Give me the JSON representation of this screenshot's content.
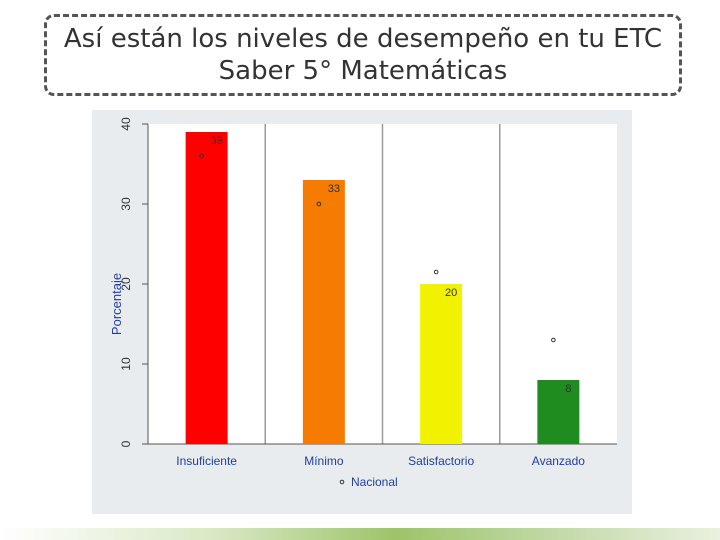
{
  "slide": {
    "title_line1": "Así están los niveles de desempeño en tu ETC",
    "title_line2": "Saber 5° Matemáticas"
  },
  "chart_data": {
    "type": "bar",
    "title": "",
    "xlabel": "",
    "ylabel": "Porcentaje",
    "ylim": [
      0,
      40
    ],
    "yticks": [
      "0",
      "10",
      "20",
      "30",
      "40"
    ],
    "grid": "vertical-between-categories",
    "categories": [
      "Insuficiente",
      "Mínimo",
      "Satisfactorio",
      "Avanzado"
    ],
    "values": [
      39,
      33,
      20,
      8
    ],
    "data_labels": [
      "39",
      "33",
      "20",
      "8"
    ],
    "bar_colors": [
      "#ff0000",
      "#f57c00",
      "#f2f200",
      "#1e8c1e"
    ],
    "series_points": {
      "name": "Nacional",
      "values": [
        36,
        30,
        21.5,
        13
      ]
    },
    "legend": {
      "label": "Nacional",
      "placement": "bottom"
    }
  }
}
